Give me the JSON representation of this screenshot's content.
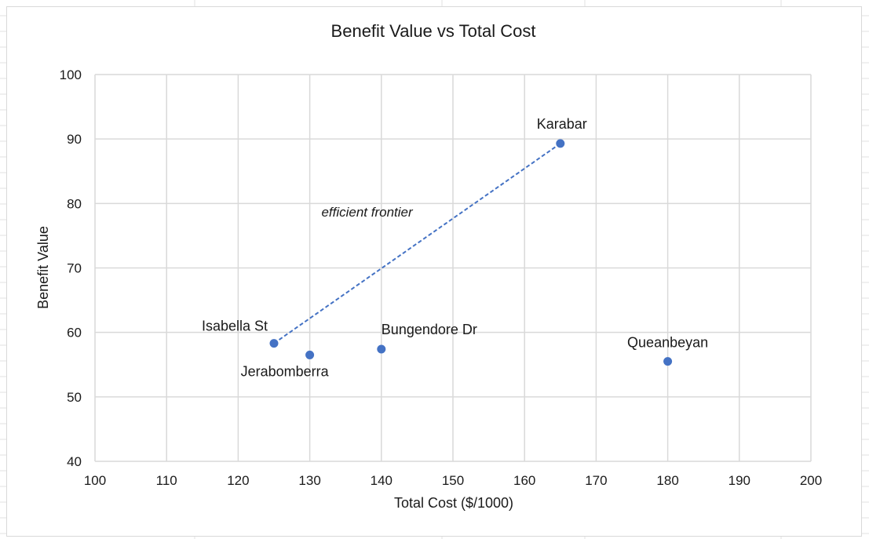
{
  "chart_data": {
    "type": "scatter",
    "title": "Benefit Value vs Total Cost",
    "xlabel": "Total Cost ($/1000)",
    "ylabel": "Benefit Value",
    "xlim": [
      100,
      200
    ],
    "ylim": [
      40,
      100
    ],
    "x_ticks": [
      "100",
      "110",
      "120",
      "130",
      "140",
      "150",
      "160",
      "170",
      "180",
      "190",
      "200"
    ],
    "y_ticks": [
      "40",
      "50",
      "60",
      "70",
      "80",
      "90",
      "100"
    ],
    "grid": true,
    "legend": "none",
    "marker_color": "#4472c4",
    "points": [
      {
        "label": "Isabella St",
        "x": 125,
        "y": 58.3
      },
      {
        "label": "Jerabomberra",
        "x": 130,
        "y": 56.5
      },
      {
        "label": "Bungendore Dr",
        "x": 140,
        "y": 57.4
      },
      {
        "label": "Karabar",
        "x": 165,
        "y": 89.3
      },
      {
        "label": "Queanbeyan",
        "x": 180,
        "y": 55.5
      }
    ],
    "frontier_line": {
      "from": [
        125,
        58.3
      ],
      "to": [
        165,
        89.3
      ],
      "color": "#4472c4",
      "style": "dashed"
    },
    "annotations": [
      {
        "text": "efficient frontier",
        "x": 138,
        "y": 78,
        "style": "italic"
      }
    ]
  }
}
